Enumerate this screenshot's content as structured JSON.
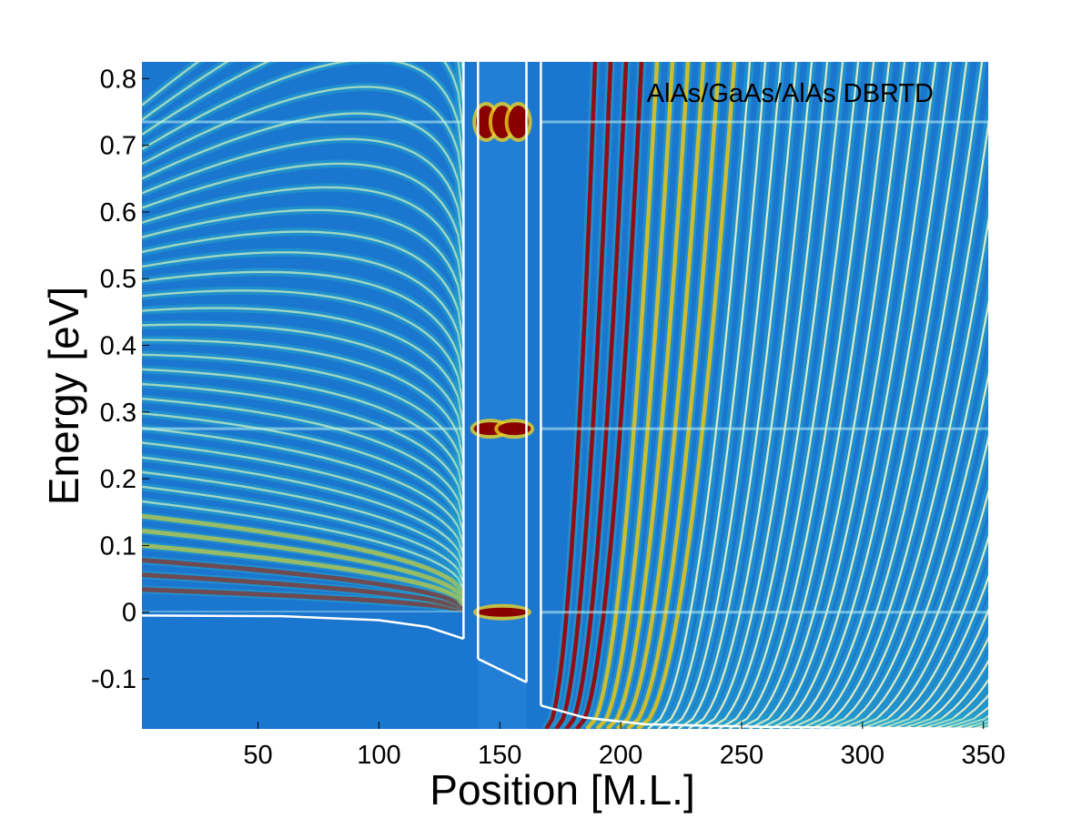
{
  "chart_data": {
    "type": "heatmap",
    "title": "AlAs/GaAs/AlAs DBRTD",
    "xlabel": "Position [M.L.]",
    "ylabel": "Energy [eV]",
    "xlim": [
      2,
      352
    ],
    "ylim": [
      -0.175,
      0.825
    ],
    "xticks": [
      50,
      100,
      150,
      200,
      250,
      300,
      350
    ],
    "xtick_labels": [
      "50",
      "100",
      "150",
      "200",
      "250",
      "300",
      "350"
    ],
    "yticks": [
      -0.1,
      0,
      0.1,
      0.2,
      0.3,
      0.4,
      0.5,
      0.6,
      0.7,
      0.8
    ],
    "ytick_labels": [
      "-0.1",
      "0",
      "0.1",
      "0.2",
      "0.3",
      "0.4",
      "0.5",
      "0.6",
      "0.7",
      "0.8"
    ],
    "grid": false,
    "legend": "none",
    "colormap": [
      "#1b2f9e",
      "#1e6fd0",
      "#20b0c8",
      "#f0e020",
      "#d81818",
      "#7a0000"
    ],
    "structure": {
      "barrier_left": [
        135,
        141
      ],
      "well": [
        141,
        161
      ],
      "barrier_right": [
        161,
        167
      ]
    },
    "resonance_energies": [
      0.0,
      0.275,
      0.735
    ],
    "band_edge_left": [
      [
        2,
        -0.005
      ],
      [
        60,
        -0.006
      ],
      [
        100,
        -0.012
      ],
      [
        120,
        -0.022
      ],
      [
        135,
        -0.04
      ]
    ],
    "band_edge_right": [
      [
        167,
        -0.14
      ],
      [
        185,
        -0.158
      ],
      [
        210,
        -0.168
      ],
      [
        260,
        -0.172
      ],
      [
        352,
        -0.175
      ]
    ],
    "barrier_edge_left": [
      [
        141,
        -0.07
      ],
      [
        161,
        -0.105
      ]
    ],
    "barrier_top_left": [
      [
        135,
        0.825
      ],
      [
        141,
        0.825
      ]
    ],
    "barrier_top_right": [
      [
        161,
        0.825
      ],
      [
        167,
        0.825
      ]
    ],
    "colors": {
      "background": "#1b76cf",
      "lines": "#ffffff",
      "axis": "#000000"
    }
  }
}
